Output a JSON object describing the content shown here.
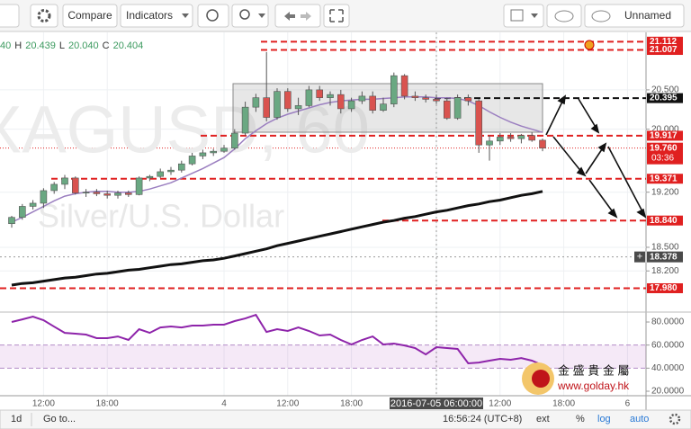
{
  "toolbar": {
    "compare": "Compare",
    "indicators": "Indicators",
    "layout": "Unnamed"
  },
  "legend": {
    "open_partial": "40",
    "ohlc": [
      {
        "label": "H",
        "value": "20.439"
      },
      {
        "label": "L",
        "value": "20.040"
      },
      {
        "label": "C",
        "value": "20.404"
      }
    ]
  },
  "chart_data": {
    "type": "candlestick",
    "watermark_symbol": "XAGUSD, 60",
    "watermark_description": "Silver/U.S. Dollar",
    "categories": [
      null,
      null,
      null,
      "12:00",
      null,
      null,
      null,
      null,
      null,
      "18:00",
      null,
      null,
      null,
      null,
      null,
      null,
      null,
      null,
      null,
      null,
      "4",
      null,
      null,
      null,
      null,
      null,
      "12:00",
      null,
      null,
      null,
      null,
      null,
      "18:00",
      null,
      null,
      null,
      null,
      null,
      null,
      null,
      "2016-07-05 06:00:00",
      null,
      null,
      null,
      null,
      null,
      "12:00",
      null,
      null,
      null,
      null,
      null,
      "18:00",
      null,
      null,
      null,
      null,
      null,
      "6"
    ],
    "open": [
      18.8,
      18.88,
      19.02,
      19.06,
      19.22,
      19.3,
      19.38,
      19.19,
      19.2,
      19.18,
      19.16,
      19.19,
      19.17,
      19.38,
      19.4,
      19.46,
      19.48,
      19.56,
      19.66,
      19.7,
      19.72,
      19.76,
      19.95,
      20.28,
      20.4,
      20.15,
      20.48,
      20.26,
      20.3,
      20.5,
      20.4,
      20.44,
      20.26,
      20.36,
      20.42,
      20.24,
      20.32,
      20.68,
      20.42,
      20.4,
      20.38,
      20.36,
      20.14,
      20.4,
      20.36,
      19.8,
      19.85,
      19.9,
      19.88,
      19.92,
      19.86,
      null,
      null,
      null,
      null,
      null,
      null,
      null,
      null
    ],
    "high": [
      18.9,
      19.05,
      19.1,
      19.25,
      19.33,
      19.42,
      19.4,
      19.24,
      19.24,
      19.22,
      19.22,
      19.22,
      19.4,
      19.42,
      19.5,
      19.52,
      19.6,
      19.7,
      19.74,
      19.75,
      19.8,
      20.0,
      20.35,
      20.45,
      20.98,
      20.52,
      20.52,
      20.4,
      20.55,
      20.55,
      20.48,
      20.5,
      20.4,
      20.48,
      20.48,
      20.4,
      20.72,
      20.7,
      20.48,
      20.44,
      20.44,
      20.4,
      20.44,
      20.44,
      20.38,
      19.92,
      19.95,
      19.95,
      19.94,
      19.96,
      19.88,
      null,
      null,
      null,
      null,
      null,
      null,
      null,
      null
    ],
    "low": [
      18.75,
      18.85,
      18.98,
      19.0,
      19.18,
      19.24,
      19.17,
      19.14,
      19.15,
      19.12,
      19.12,
      19.14,
      19.16,
      19.34,
      19.38,
      19.42,
      19.45,
      19.54,
      19.62,
      19.66,
      19.7,
      19.74,
      19.92,
      20.22,
      20.1,
      20.12,
      20.22,
      20.18,
      20.28,
      20.36,
      20.3,
      20.2,
      20.22,
      20.32,
      20.2,
      20.22,
      20.28,
      20.38,
      20.36,
      20.34,
      20.32,
      20.12,
      20.12,
      20.3,
      19.7,
      19.6,
      19.8,
      19.84,
      19.82,
      19.84,
      19.72,
      null,
      null,
      null,
      null,
      null,
      null,
      null,
      null
    ],
    "close": [
      18.88,
      19.02,
      19.06,
      19.22,
      19.3,
      19.38,
      19.19,
      19.2,
      19.18,
      19.16,
      19.19,
      19.17,
      19.38,
      19.4,
      19.46,
      19.48,
      19.56,
      19.66,
      19.7,
      19.72,
      19.76,
      19.95,
      20.28,
      20.4,
      20.15,
      20.48,
      20.26,
      20.3,
      20.5,
      20.4,
      20.44,
      20.26,
      20.36,
      20.42,
      20.24,
      20.32,
      20.68,
      20.42,
      20.4,
      20.38,
      20.36,
      20.14,
      20.4,
      20.36,
      19.8,
      19.85,
      19.9,
      19.88,
      19.92,
      19.86,
      19.76,
      null,
      null,
      null,
      null,
      null,
      null,
      null,
      null
    ],
    "up_color": "#6aa882",
    "down_color": "#d9534f",
    "overlays": [
      {
        "color": "#9b7fc0",
        "values": [
          18.82,
          18.88,
          18.95,
          19.02,
          19.09,
          19.15,
          19.18,
          19.2,
          19.21,
          19.21,
          19.2,
          19.2,
          19.21,
          19.24,
          19.28,
          19.32,
          19.38,
          19.44,
          19.5,
          19.57,
          19.64,
          19.75,
          19.88,
          19.98,
          20.07,
          20.14,
          20.19,
          20.23,
          20.27,
          20.31,
          20.34,
          20.36,
          20.37,
          20.38,
          20.38,
          20.39,
          20.4,
          20.41,
          20.41,
          20.41,
          20.4,
          20.4,
          20.39,
          20.36,
          20.3,
          20.22,
          20.15,
          20.09,
          20.04,
          20.0,
          19.96,
          null,
          null,
          null,
          null,
          null,
          null,
          null,
          null
        ]
      },
      {
        "color": "#111111",
        "values": [
          18.02,
          18.04,
          18.05,
          18.07,
          18.09,
          18.11,
          18.12,
          18.14,
          18.16,
          18.17,
          18.19,
          18.21,
          18.22,
          18.24,
          18.26,
          18.28,
          18.29,
          18.31,
          18.33,
          18.34,
          18.36,
          18.39,
          18.42,
          18.45,
          18.48,
          18.52,
          18.55,
          18.58,
          18.61,
          18.64,
          18.67,
          18.7,
          18.73,
          18.76,
          18.79,
          18.82,
          18.84,
          18.87,
          18.89,
          18.92,
          18.95,
          18.97,
          19.0,
          19.03,
          19.05,
          19.08,
          19.1,
          19.13,
          19.16,
          19.18,
          19.21,
          null,
          null,
          null,
          null,
          null,
          null,
          null,
          null
        ]
      }
    ],
    "ylim": [
      17.7,
      21.23
    ],
    "yticks": [
      {
        "value": 20.5,
        "label": "20.500"
      },
      {
        "value": 20,
        "label": "20.000"
      },
      {
        "value": 19.2,
        "label": "19.200"
      },
      {
        "value": 18.5,
        "label": "18.500"
      },
      {
        "value": 18.2,
        "label": "18.200"
      }
    ],
    "grid": true,
    "levels": [
      {
        "value": 21.112,
        "label": "21.112",
        "color": "#e02020"
      },
      {
        "value": 21.007,
        "label": "21.007",
        "color": "#e02020"
      },
      {
        "value": 20.395,
        "label": "20.395",
        "color": "#111111"
      },
      {
        "value": 19.917,
        "label": "19.917",
        "color": "#e02020"
      },
      {
        "value": 19.371,
        "label": "19.371",
        "color": "#e02020"
      },
      {
        "value": 18.84,
        "label": "18.840",
        "color": "#e02020"
      },
      {
        "value": 17.98,
        "label": "17.980",
        "color": "#e02020"
      }
    ],
    "last_price": {
      "value": 19.76,
      "label": "19.760",
      "countdown": "03:36",
      "color": "#e02020"
    },
    "crosshair_price": {
      "value": 18.378,
      "label": "18.378"
    },
    "rsi": {
      "color": "#8e24aa",
      "ylim": [
        16.1,
        88.6
      ],
      "yticks": [
        {
          "value": 80,
          "label": "80.0000"
        },
        {
          "value": 60,
          "label": "60.0000"
        },
        {
          "value": 40,
          "label": "40.0000"
        },
        {
          "value": 20,
          "label": "20.0000"
        }
      ],
      "band": [
        40,
        60
      ],
      "values": [
        80.0,
        82.3,
        84.7,
        81.6,
        76.0,
        70.6,
        69.9,
        69.1,
        66.0,
        66.0,
        67.5,
        64.4,
        73.8,
        70.6,
        75.3,
        76.1,
        75.3,
        76.9,
        76.9,
        77.7,
        77.7,
        80.8,
        83.1,
        86.2,
        71.4,
        73.8,
        72.2,
        75.3,
        72.2,
        68.3,
        69.1,
        64.4,
        60.5,
        64.4,
        67.5,
        60.5,
        61.3,
        59.7,
        57.4,
        51.9,
        58.2,
        57.4,
        56.6,
        44.2,
        44.9,
        46.5,
        48.1,
        47.3,
        48.8,
        46.5,
        42.6,
        null,
        null,
        null,
        null,
        null,
        null,
        null,
        null
      ]
    }
  },
  "logo": {
    "title": "金 盛 貴 金 屬",
    "url": "www.golday.hk"
  },
  "status_bar": {
    "range": "1d",
    "goto": "Go to...",
    "clock": "16:56:24 (UTC+8)",
    "ext": "ext",
    "percent": "%",
    "log": "log",
    "auto": "auto"
  }
}
